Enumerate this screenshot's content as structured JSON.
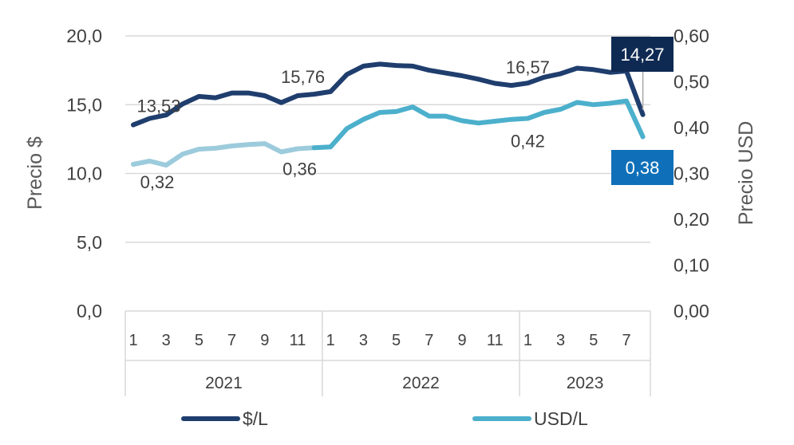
{
  "chart_data": {
    "type": "line",
    "colors": {
      "peso": "#1f3e6e",
      "usd_light": "#9ccbdc",
      "usd": "#4cb0cc",
      "peso_label_bg": "#0f2a52",
      "usd_label_bg": "#0f70b9",
      "grid": "#d9d9d9"
    },
    "left_axis": {
      "title": "Precio $",
      "range": [
        0,
        20
      ],
      "ticks": [
        0,
        5,
        10,
        15,
        20
      ],
      "tick_labels": [
        "0,0",
        "5,0",
        "10,0",
        "15,0",
        "20,0"
      ]
    },
    "right_axis": {
      "title": "Precio USD",
      "range": [
        0,
        0.6
      ],
      "ticks": [
        0,
        0.1,
        0.2,
        0.3,
        0.4,
        0.5,
        0.6
      ],
      "tick_labels": [
        "0,00",
        "0,10",
        "0,20",
        "0,30",
        "0,40",
        "0,50",
        "0,60"
      ]
    },
    "months": [
      1,
      2,
      3,
      4,
      5,
      6,
      7,
      8,
      9,
      10,
      11,
      12,
      1,
      2,
      3,
      4,
      5,
      6,
      7,
      8,
      9,
      10,
      11,
      12,
      1,
      2,
      3,
      4,
      5,
      6,
      7,
      8
    ],
    "month_tick_labels": [
      "1",
      "",
      "3",
      "",
      "5",
      "",
      "7",
      "",
      "9",
      "",
      "11",
      "",
      "1",
      "",
      "3",
      "",
      "5",
      "",
      "7",
      "",
      "9",
      "",
      "11",
      "",
      "1",
      "",
      "3",
      "",
      "5",
      "",
      "7",
      ""
    ],
    "years": [
      {
        "label": "2021",
        "start": 0,
        "end": 11
      },
      {
        "label": "2022",
        "start": 12,
        "end": 23
      },
      {
        "label": "2023",
        "start": 24,
        "end": 31
      }
    ],
    "series": [
      {
        "name": "$/L",
        "axis": "left",
        "values": [
          13.53,
          14.0,
          14.25,
          15.05,
          15.6,
          15.5,
          15.85,
          15.85,
          15.65,
          15.15,
          15.65,
          15.76,
          15.95,
          17.2,
          17.8,
          17.95,
          17.85,
          17.8,
          17.5,
          17.3,
          17.1,
          16.85,
          16.55,
          16.4,
          16.57,
          17.0,
          17.25,
          17.65,
          17.55,
          17.35,
          17.45,
          14.27
        ]
      },
      {
        "name": "USD/L",
        "axis": "right",
        "values": [
          0.32,
          0.327,
          0.318,
          0.342,
          0.353,
          0.355,
          0.36,
          0.363,
          0.365,
          0.347,
          0.354,
          0.356,
          0.358,
          0.398,
          0.418,
          0.433,
          0.435,
          0.445,
          0.425,
          0.425,
          0.415,
          0.41,
          0.414,
          0.418,
          0.42,
          0.433,
          0.44,
          0.455,
          0.45,
          0.453,
          0.458,
          0.38
        ]
      }
    ],
    "data_labels": [
      {
        "series": 0,
        "index": 0,
        "text": "13,53"
      },
      {
        "series": 0,
        "index": 11,
        "text": "15,76"
      },
      {
        "series": 0,
        "index": 24,
        "text": "16,57"
      },
      {
        "series": 0,
        "index": 31,
        "text": "14,27",
        "boxed": true
      },
      {
        "series": 1,
        "index": 0,
        "text": "0,32"
      },
      {
        "series": 1,
        "index": 11,
        "text": "0,36"
      },
      {
        "series": 1,
        "index": 24,
        "text": "0,42"
      },
      {
        "series": 1,
        "index": 31,
        "text": "0,38",
        "boxed": true
      }
    ],
    "legend": {
      "position": "bottom",
      "items": [
        "$/L",
        "USD/L"
      ]
    }
  }
}
